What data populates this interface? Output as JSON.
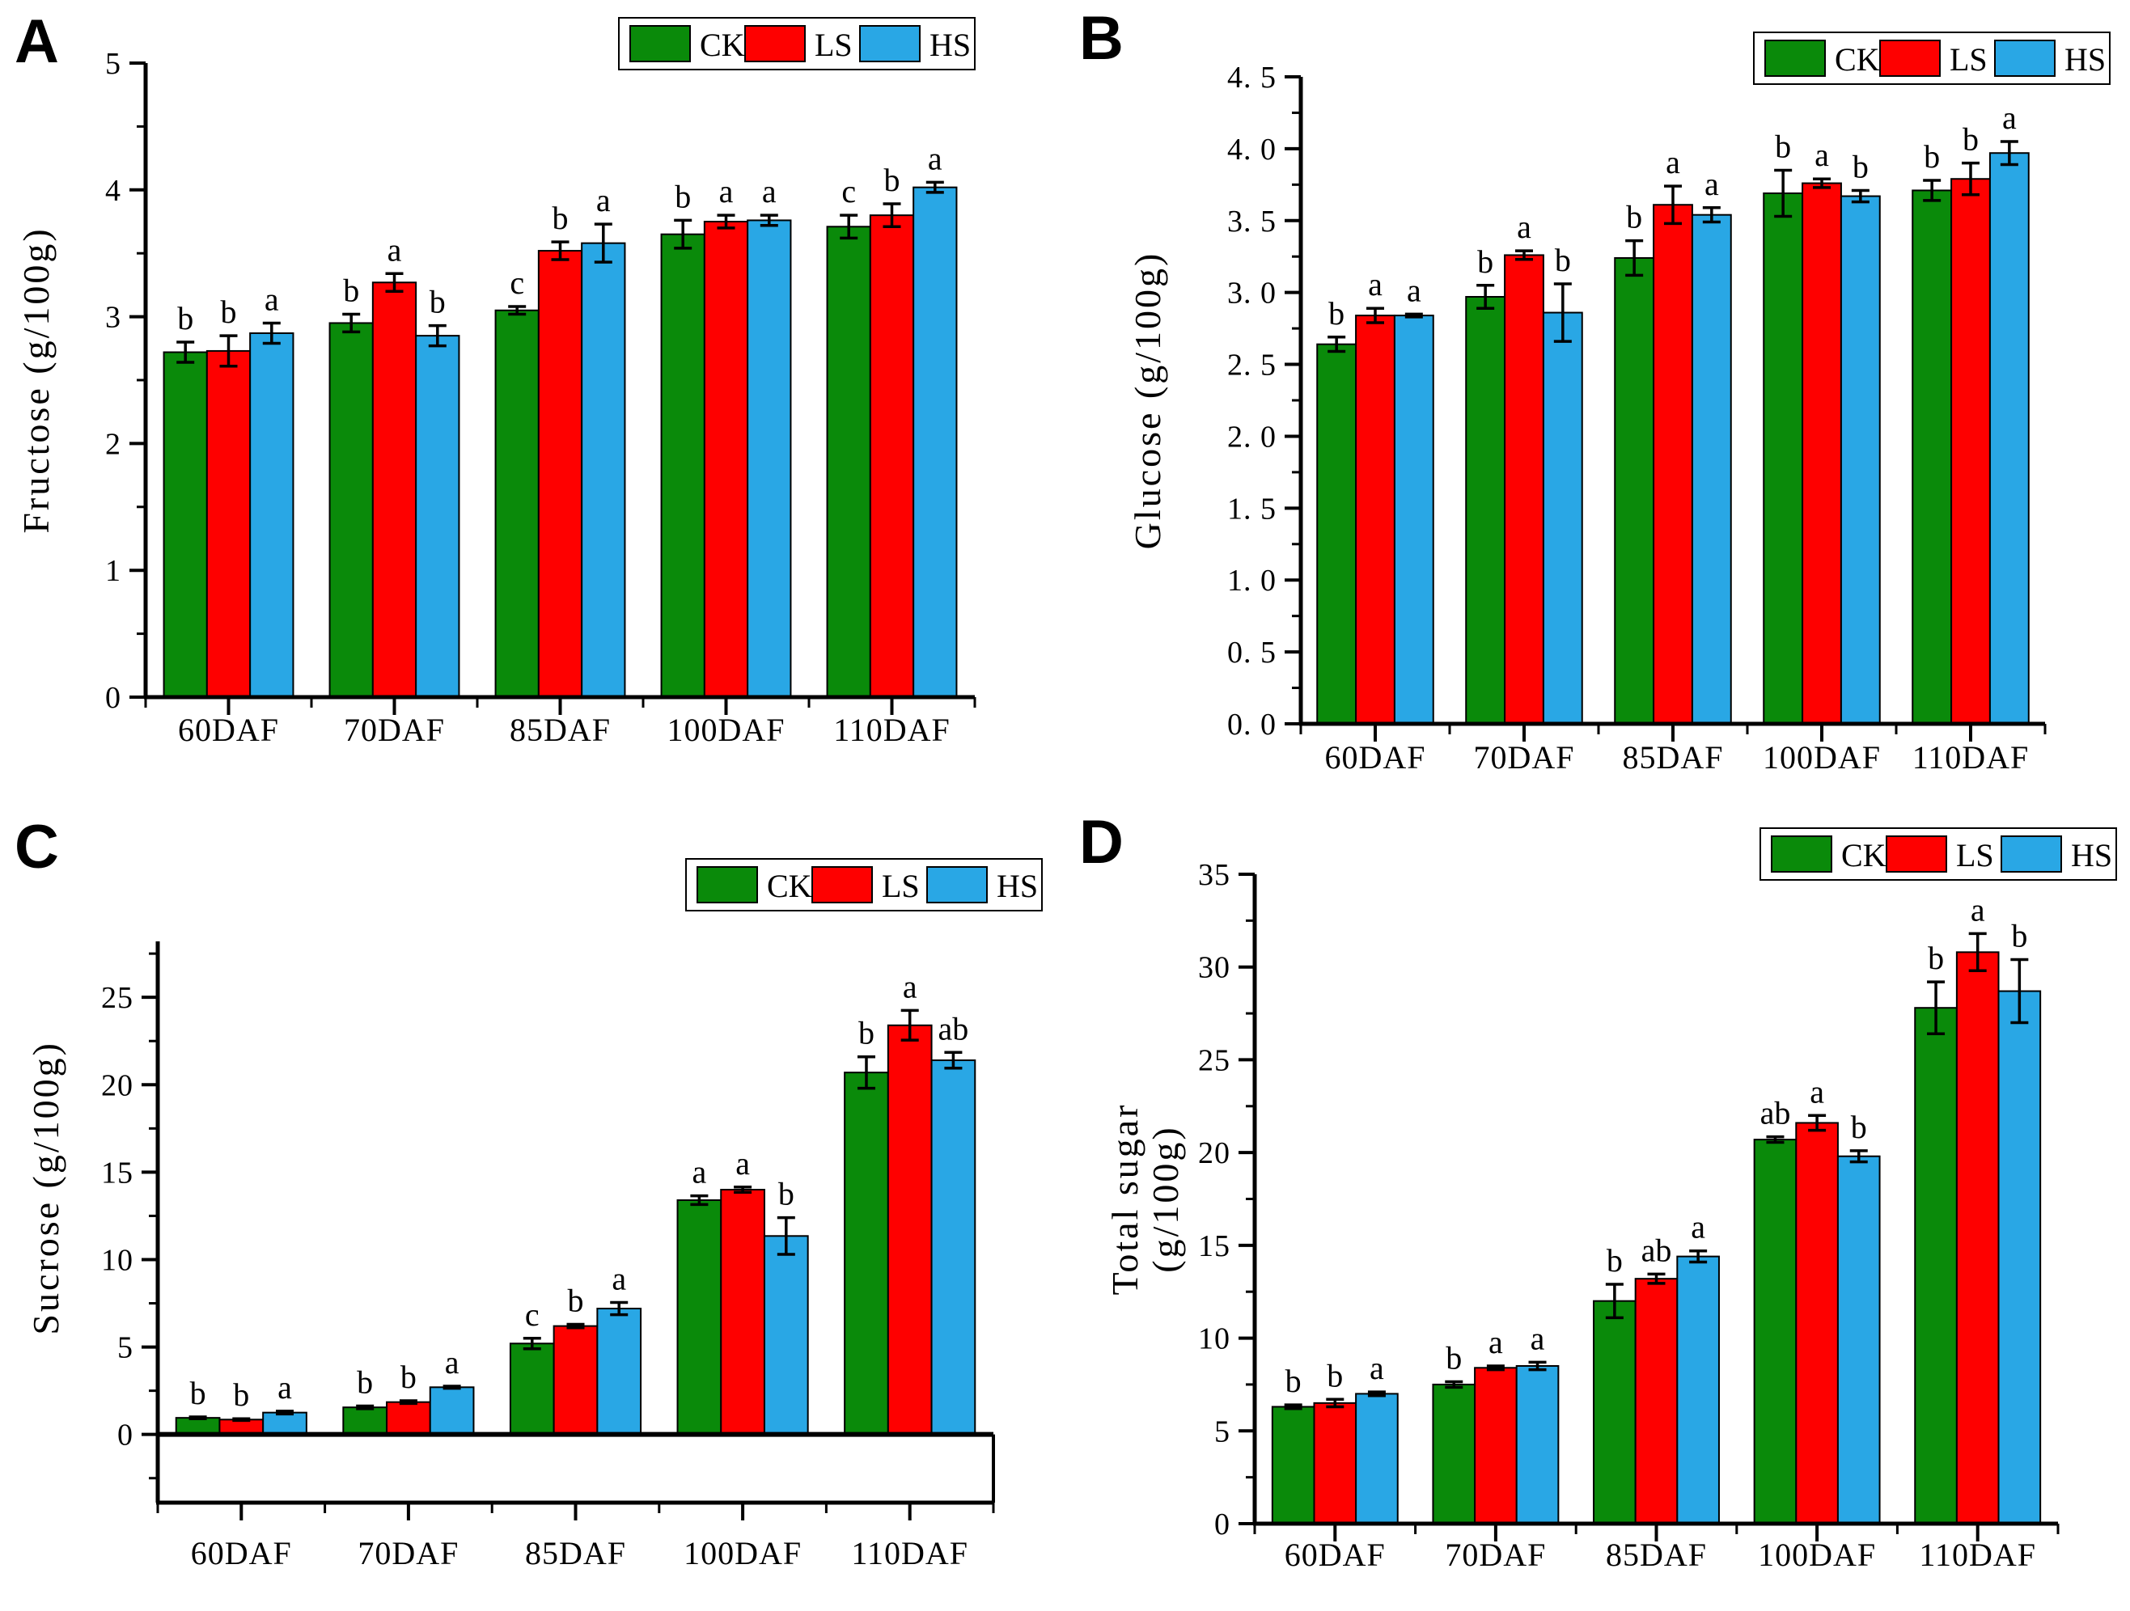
{
  "colors": {
    "ck": "#0a8a0a",
    "ls": "#fe0000",
    "hs": "#29a7e5",
    "axis": "#000000",
    "legend_bg": "#ffffff"
  },
  "legend": {
    "entries": [
      {
        "name": "CK"
      },
      {
        "name": "LS"
      },
      {
        "name": "HS"
      }
    ]
  },
  "chart_data": [
    {
      "type": "bar",
      "panel_label": "A",
      "ylabel": "Fructose (g/100g)",
      "categories": [
        "60DAF",
        "70DAF",
        "85DAF",
        "100DAF",
        "110DAF"
      ],
      "series": [
        {
          "name": "CK",
          "color_key": "ck",
          "values": [
            2.72,
            2.95,
            3.05,
            3.65,
            3.71
          ],
          "errors": [
            0.08,
            0.07,
            0.03,
            0.11,
            0.09
          ],
          "sig_letters": [
            "b",
            "b",
            "c",
            "b",
            "c"
          ]
        },
        {
          "name": "LS",
          "color_key": "ls",
          "values": [
            2.73,
            3.27,
            3.52,
            3.75,
            3.8
          ],
          "errors": [
            0.12,
            0.07,
            0.07,
            0.05,
            0.09
          ],
          "sig_letters": [
            "b",
            "a",
            "b",
            "a",
            "b"
          ]
        },
        {
          "name": "HS",
          "color_key": "hs",
          "values": [
            2.87,
            2.85,
            3.58,
            3.76,
            4.02
          ],
          "errors": [
            0.08,
            0.08,
            0.15,
            0.04,
            0.04
          ],
          "sig_letters": [
            "a",
            "b",
            "a",
            "a",
            "a"
          ]
        }
      ],
      "ylim": [
        0,
        5
      ],
      "yticks": {
        "values": [
          0,
          1,
          2,
          3,
          4,
          5
        ],
        "labels": [
          "0",
          "1",
          "2",
          "3",
          "4",
          "5"
        ],
        "minor_step": 0.5
      },
      "grid": false,
      "legend_position": "top-right"
    },
    {
      "type": "bar",
      "panel_label": "B",
      "ylabel": "Glucose (g/100g)",
      "categories": [
        "60DAF",
        "70DAF",
        "85DAF",
        "100DAF",
        "110DAF"
      ],
      "series": [
        {
          "name": "CK",
          "color_key": "ck",
          "values": [
            2.64,
            2.97,
            3.24,
            3.69,
            3.71
          ],
          "errors": [
            0.05,
            0.08,
            0.12,
            0.16,
            0.07
          ],
          "sig_letters": [
            "b",
            "b",
            "b",
            "b",
            "b"
          ]
        },
        {
          "name": "LS",
          "color_key": "ls",
          "values": [
            2.84,
            3.26,
            3.61,
            3.76,
            3.79
          ],
          "errors": [
            0.05,
            0.03,
            0.13,
            0.03,
            0.11
          ],
          "sig_letters": [
            "a",
            "a",
            "a",
            "a",
            "b"
          ]
        },
        {
          "name": "HS",
          "color_key": "hs",
          "values": [
            2.84,
            2.86,
            3.54,
            3.67,
            3.97
          ],
          "errors": [
            0.01,
            0.2,
            0.05,
            0.04,
            0.08
          ],
          "sig_letters": [
            "a",
            "b",
            "a",
            "b",
            "a"
          ]
        }
      ],
      "ylim": [
        0,
        4.5
      ],
      "yticks": {
        "values": [
          0,
          0.5,
          1,
          1.5,
          2,
          2.5,
          3,
          3.5,
          4,
          4.5
        ],
        "labels": [
          "0. 0",
          "0. 5",
          "1. 0",
          "1. 5",
          "2. 0",
          "2. 5",
          "3. 0",
          "3. 5",
          "4. 0",
          "4. 5"
        ],
        "minor_step": 0.25
      },
      "grid": false,
      "legend_position": "top-right"
    },
    {
      "type": "bar",
      "panel_label": "C",
      "ylabel": "Sucrose (g/100g)",
      "categories": [
        "60DAF",
        "70DAF",
        "85DAF",
        "100DAF",
        "110DAF"
      ],
      "series": [
        {
          "name": "CK",
          "color_key": "ck",
          "values": [
            0.95,
            1.55,
            5.2,
            13.4,
            20.7
          ],
          "errors": [
            0.05,
            0.08,
            0.3,
            0.25,
            0.9
          ],
          "sig_letters": [
            "b",
            "b",
            "c",
            "a",
            "b"
          ]
        },
        {
          "name": "LS",
          "color_key": "ls",
          "values": [
            0.85,
            1.85,
            6.2,
            14.0,
            23.4
          ],
          "errors": [
            0.05,
            0.08,
            0.1,
            0.15,
            0.85
          ],
          "sig_letters": [
            "b",
            "b",
            "b",
            "a",
            "a"
          ]
        },
        {
          "name": "HS",
          "color_key": "hs",
          "values": [
            1.25,
            2.7,
            7.2,
            11.35,
            21.4
          ],
          "errors": [
            0.08,
            0.06,
            0.35,
            1.05,
            0.45
          ],
          "sig_letters": [
            "a",
            "a",
            "a",
            "b",
            "ab"
          ]
        }
      ],
      "ylim": [
        -3.9,
        28.2
      ],
      "yticks": {
        "values": [
          0,
          5,
          10,
          15,
          20,
          25
        ],
        "labels": [
          "0",
          "5",
          "10",
          "15",
          "20",
          "25"
        ],
        "minor_step": 2.5
      },
      "grid": false,
      "legend_position": "top-right"
    },
    {
      "type": "bar",
      "panel_label": "D",
      "ylabel": "Total sugar\n(g/100g)",
      "categories": [
        "60DAF",
        "70DAF",
        "85DAF",
        "100DAF",
        "110DAF"
      ],
      "series": [
        {
          "name": "CK",
          "color_key": "ck",
          "values": [
            6.3,
            7.5,
            12.0,
            20.7,
            27.8
          ],
          "errors": [
            0.1,
            0.15,
            0.9,
            0.15,
            1.4
          ],
          "sig_letters": [
            "b",
            "b",
            "b",
            "ab",
            "b"
          ]
        },
        {
          "name": "LS",
          "color_key": "ls",
          "values": [
            6.5,
            8.4,
            13.2,
            21.6,
            30.8
          ],
          "errors": [
            0.2,
            0.1,
            0.25,
            0.4,
            1.0
          ],
          "sig_letters": [
            "b",
            "a",
            "ab",
            "a",
            "a"
          ]
        },
        {
          "name": "HS",
          "color_key": "hs",
          "values": [
            7.0,
            8.5,
            14.4,
            19.8,
            28.7
          ],
          "errors": [
            0.1,
            0.2,
            0.3,
            0.3,
            1.7
          ],
          "sig_letters": [
            "a",
            "a",
            "a",
            "b",
            "b"
          ]
        }
      ],
      "ylim": [
        0,
        35
      ],
      "yticks": {
        "values": [
          0,
          5,
          10,
          15,
          20,
          25,
          30,
          35
        ],
        "labels": [
          "0",
          "5",
          "10",
          "15",
          "20",
          "25",
          "30",
          "35"
        ],
        "minor_step": 2.5
      },
      "grid": false,
      "legend_position": "top-right"
    }
  ]
}
